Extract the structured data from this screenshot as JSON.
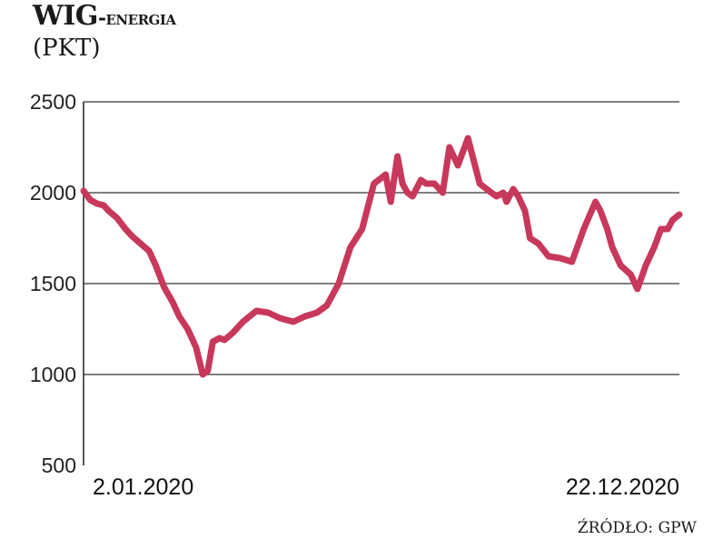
{
  "header": {
    "title_main": "WIG",
    "title_suffix": "-ENERGIA",
    "unit": "(PKT)"
  },
  "footer": {
    "source": "ŹRÓDŁO: GPW"
  },
  "colors": {
    "line": "#c8385a",
    "grid": "#555555",
    "axis": "#222222"
  },
  "chart_data": {
    "type": "line",
    "title": "WIG-ENERGIA",
    "subtitle": "(PKT)",
    "xlabel": "",
    "ylabel": "",
    "ylim": [
      500,
      2500
    ],
    "yticks": [
      500,
      1000,
      1500,
      2000,
      2500
    ],
    "xtick_labels": [
      "2.01.2020",
      "22.12.2020"
    ],
    "x_range": [
      "2020-01-02",
      "2020-12-22"
    ],
    "grid": "horizontal",
    "x": [
      "2020-01-02",
      "2020-01-06",
      "2020-01-10",
      "2020-01-14",
      "2020-01-17",
      "2020-01-22",
      "2020-01-27",
      "2020-01-31",
      "2020-02-05",
      "2020-02-10",
      "2020-02-14",
      "2020-02-19",
      "2020-02-24",
      "2020-02-28",
      "2020-03-04",
      "2020-03-09",
      "2020-03-13",
      "2020-03-16",
      "2020-03-19",
      "2020-03-23",
      "2020-03-26",
      "2020-03-31",
      "2020-04-06",
      "2020-04-14",
      "2020-04-21",
      "2020-04-28",
      "2020-05-06",
      "2020-05-13",
      "2020-05-20",
      "2020-05-26",
      "2020-06-02",
      "2020-06-09",
      "2020-06-16",
      "2020-06-23",
      "2020-06-30",
      "2020-07-03",
      "2020-07-07",
      "2020-07-10",
      "2020-07-13",
      "2020-07-16",
      "2020-07-21",
      "2020-07-24",
      "2020-07-29",
      "2020-08-03",
      "2020-08-07",
      "2020-08-12",
      "2020-08-18",
      "2020-08-25",
      "2020-09-01",
      "2020-09-04",
      "2020-09-08",
      "2020-09-10",
      "2020-09-14",
      "2020-09-17",
      "2020-09-21",
      "2020-09-24",
      "2020-09-29",
      "2020-10-05",
      "2020-10-12",
      "2020-10-19",
      "2020-10-26",
      "2020-11-02",
      "2020-11-05",
      "2020-11-09",
      "2020-11-12",
      "2020-11-17",
      "2020-11-23",
      "2020-11-27",
      "2020-12-02",
      "2020-12-07",
      "2020-12-11",
      "2020-12-15",
      "2020-12-18",
      "2020-12-22"
    ],
    "series": [
      {
        "values": [
          2010,
          1960,
          1940,
          1930,
          1900,
          1860,
          1800,
          1760,
          1720,
          1680,
          1600,
          1480,
          1400,
          1320,
          1250,
          1150,
          1000,
          1020,
          1180,
          1200,
          1190,
          1230,
          1290,
          1350,
          1340,
          1310,
          1290,
          1320,
          1340,
          1380,
          1500,
          1700,
          1800,
          2050,
          2100,
          1950,
          2200,
          2050,
          2000,
          1980,
          2070,
          2050,
          2050,
          2000,
          2250,
          2150,
          2300,
          2050,
          2000,
          1980,
          2000,
          1950,
          2020,
          1980,
          1900,
          1750,
          1720,
          1650,
          1640,
          1620,
          1800,
          1950,
          1900,
          1800,
          1700,
          1600,
          1550,
          1470,
          1600,
          1700,
          1800,
          1800,
          1850,
          1880
        ]
      }
    ]
  }
}
